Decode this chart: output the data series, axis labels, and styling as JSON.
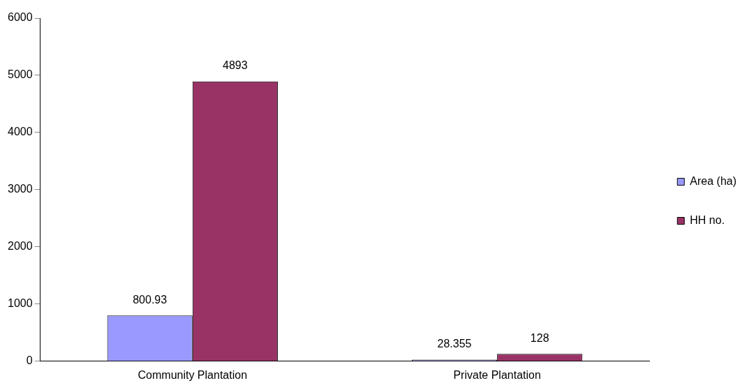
{
  "chart_data": {
    "type": "bar",
    "categories": [
      "Community Plantation",
      "Private Plantation"
    ],
    "series": [
      {
        "name": "Area (ha)",
        "color": "#9999ff",
        "values": [
          800.93,
          28.355
        ]
      },
      {
        "name": "HH no.",
        "color": "#993366",
        "values": [
          4893,
          128
        ]
      }
    ],
    "ylim": [
      0,
      6000
    ],
    "yticks": [
      0,
      1000,
      2000,
      3000,
      4000,
      5000,
      6000
    ],
    "grid": false,
    "legend": "right",
    "data_labels": true
  }
}
